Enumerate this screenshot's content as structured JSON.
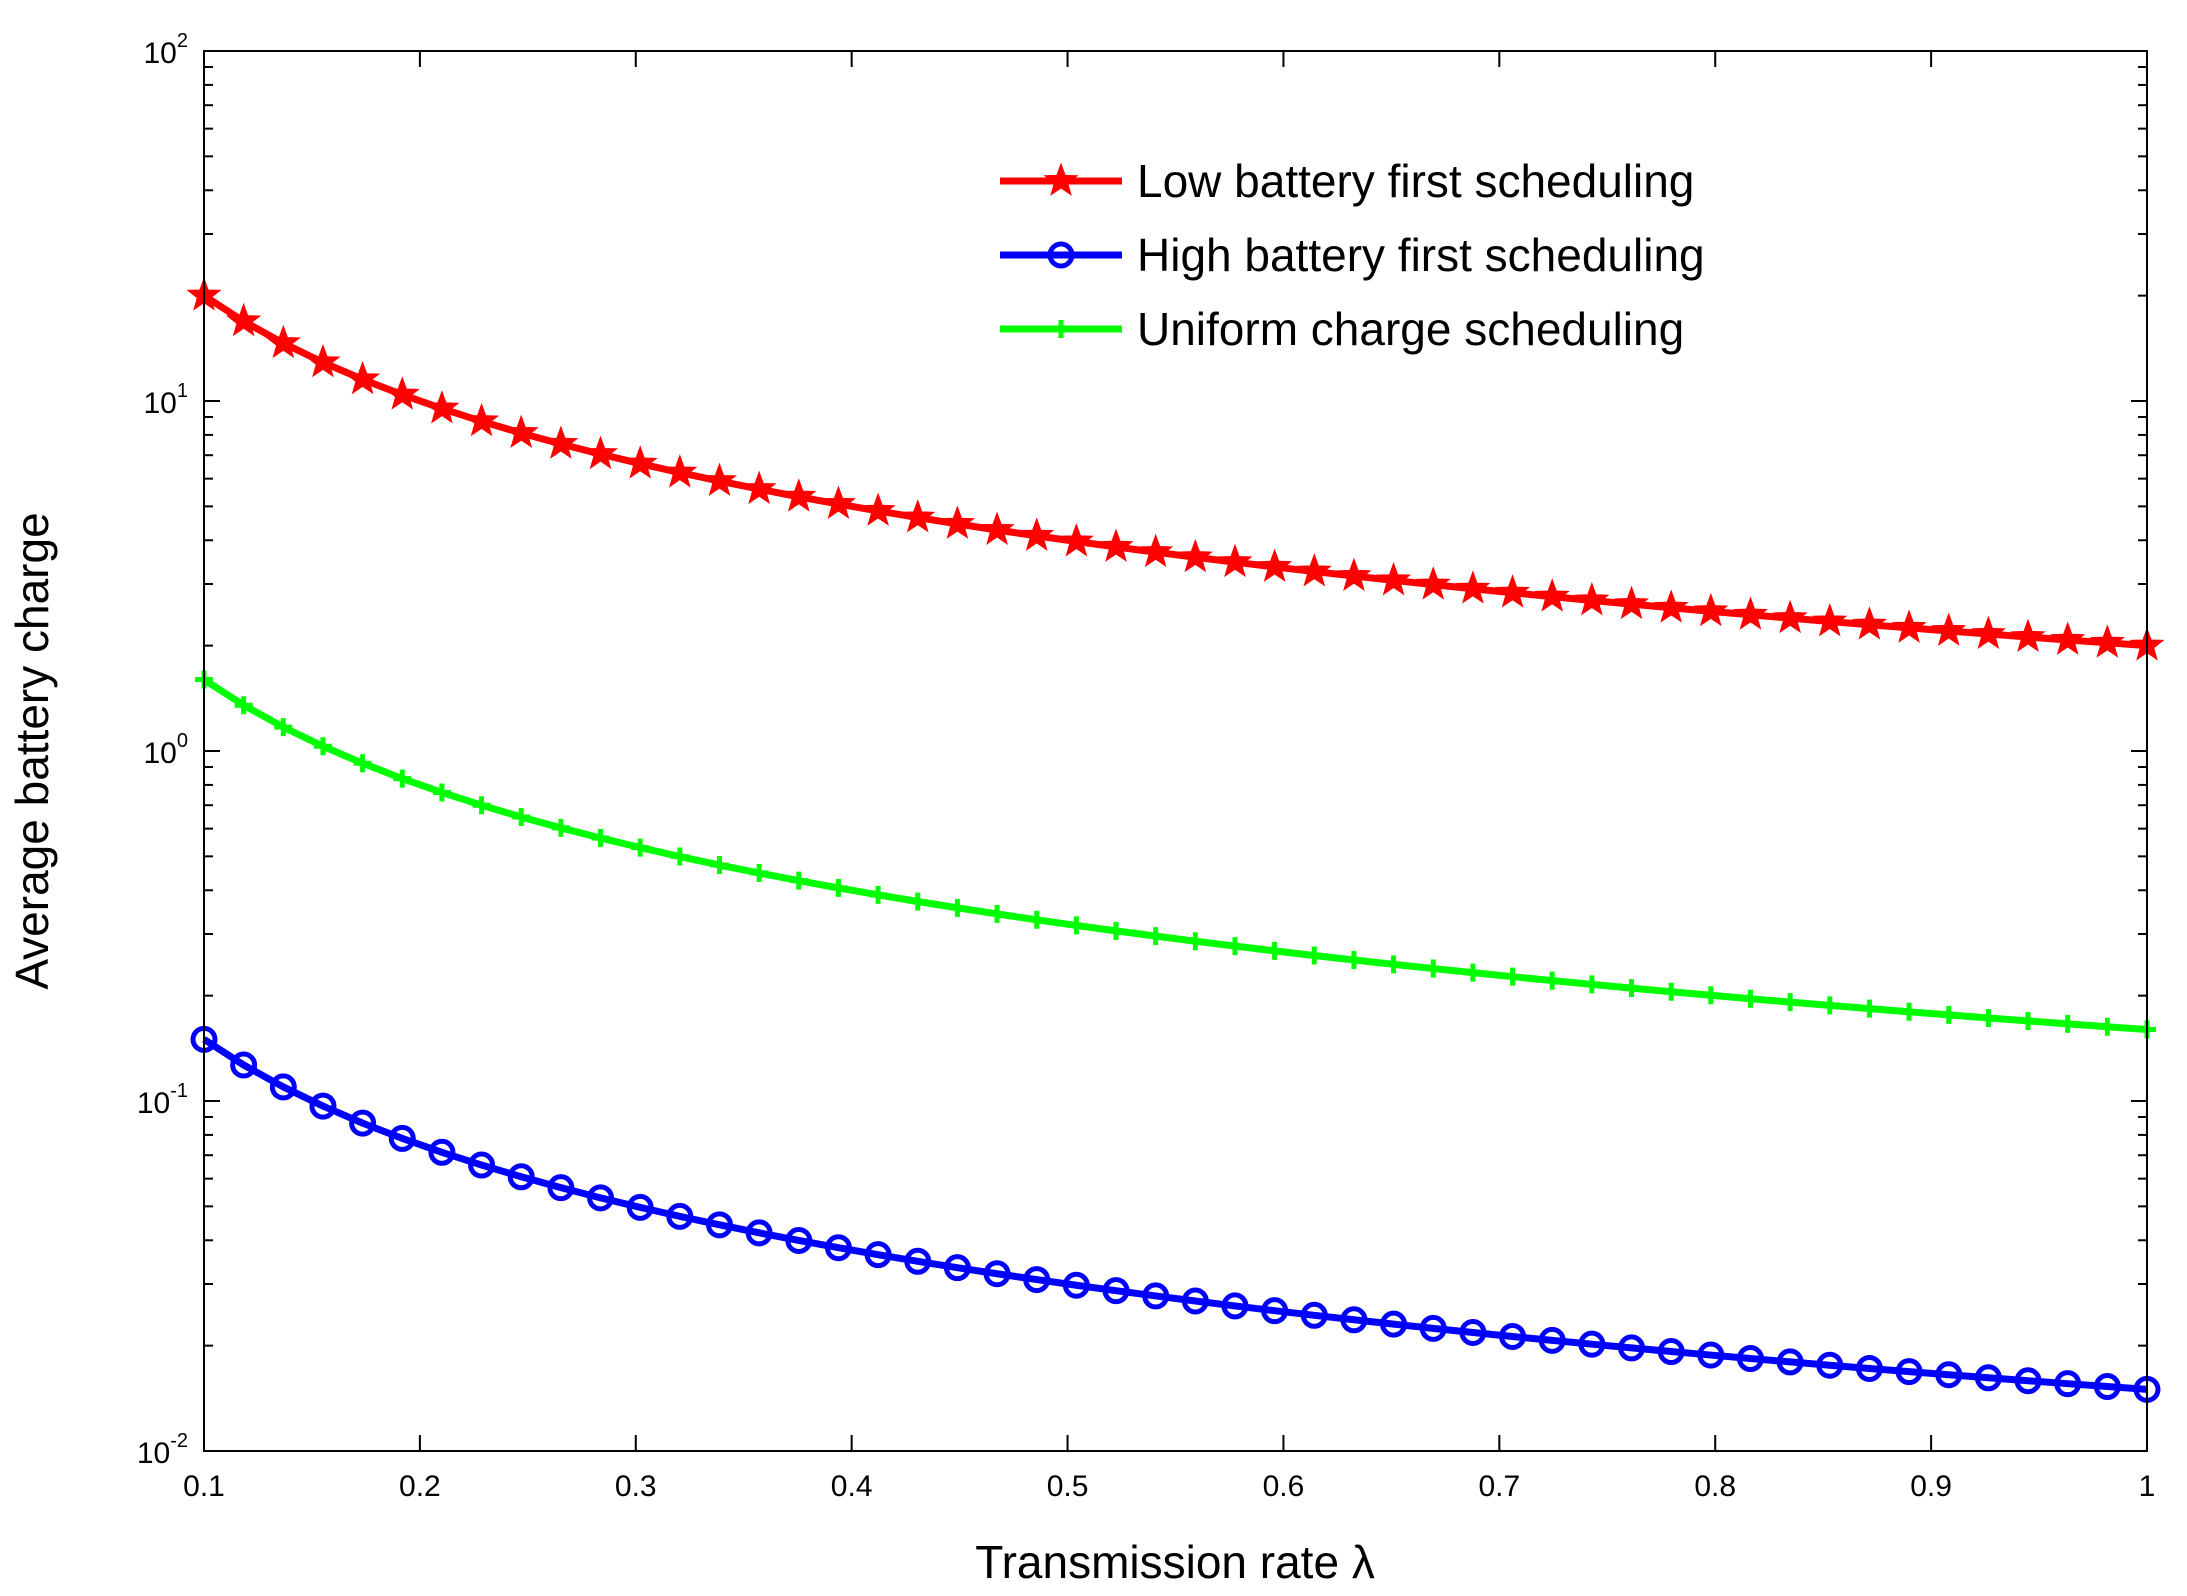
{
  "chart_data": {
    "type": "line",
    "title": "",
    "xlabel": "Transmission rate λ",
    "ylabel": "Average battery charge",
    "xlim": [
      0.1,
      1.0
    ],
    "ylim": [
      0.01,
      100
    ],
    "yscale": "log",
    "grid": false,
    "legend_position": "top-right",
    "x_ticks": [
      "0.1",
      "0.2",
      "0.3",
      "0.4",
      "0.5",
      "0.6",
      "0.7",
      "0.8",
      "0.9",
      "1"
    ],
    "y_ticks": [
      {
        "base": "10",
        "exp": "-2"
      },
      {
        "base": "10",
        "exp": "-1"
      },
      {
        "base": "10",
        "exp": "0"
      },
      {
        "base": "10",
        "exp": "1"
      },
      {
        "base": "10",
        "exp": "2"
      }
    ],
    "x_sampling": {
      "start": 0.1,
      "end": 1.0,
      "count": 50
    },
    "series": [
      {
        "name": "Low battery first scheduling",
        "color": "#ff0000",
        "marker": "star",
        "model": "power",
        "at_start": 20,
        "at_end": 2.0
      },
      {
        "name": "High battery first scheduling",
        "color": "#0000ff",
        "marker": "circle",
        "model": "power",
        "at_start": 0.15,
        "at_end": 0.015
      },
      {
        "name": "Uniform charge scheduling",
        "color": "#00ff00",
        "marker": "plus",
        "model": "power",
        "at_start": 1.6,
        "at_end": 0.16
      }
    ]
  }
}
